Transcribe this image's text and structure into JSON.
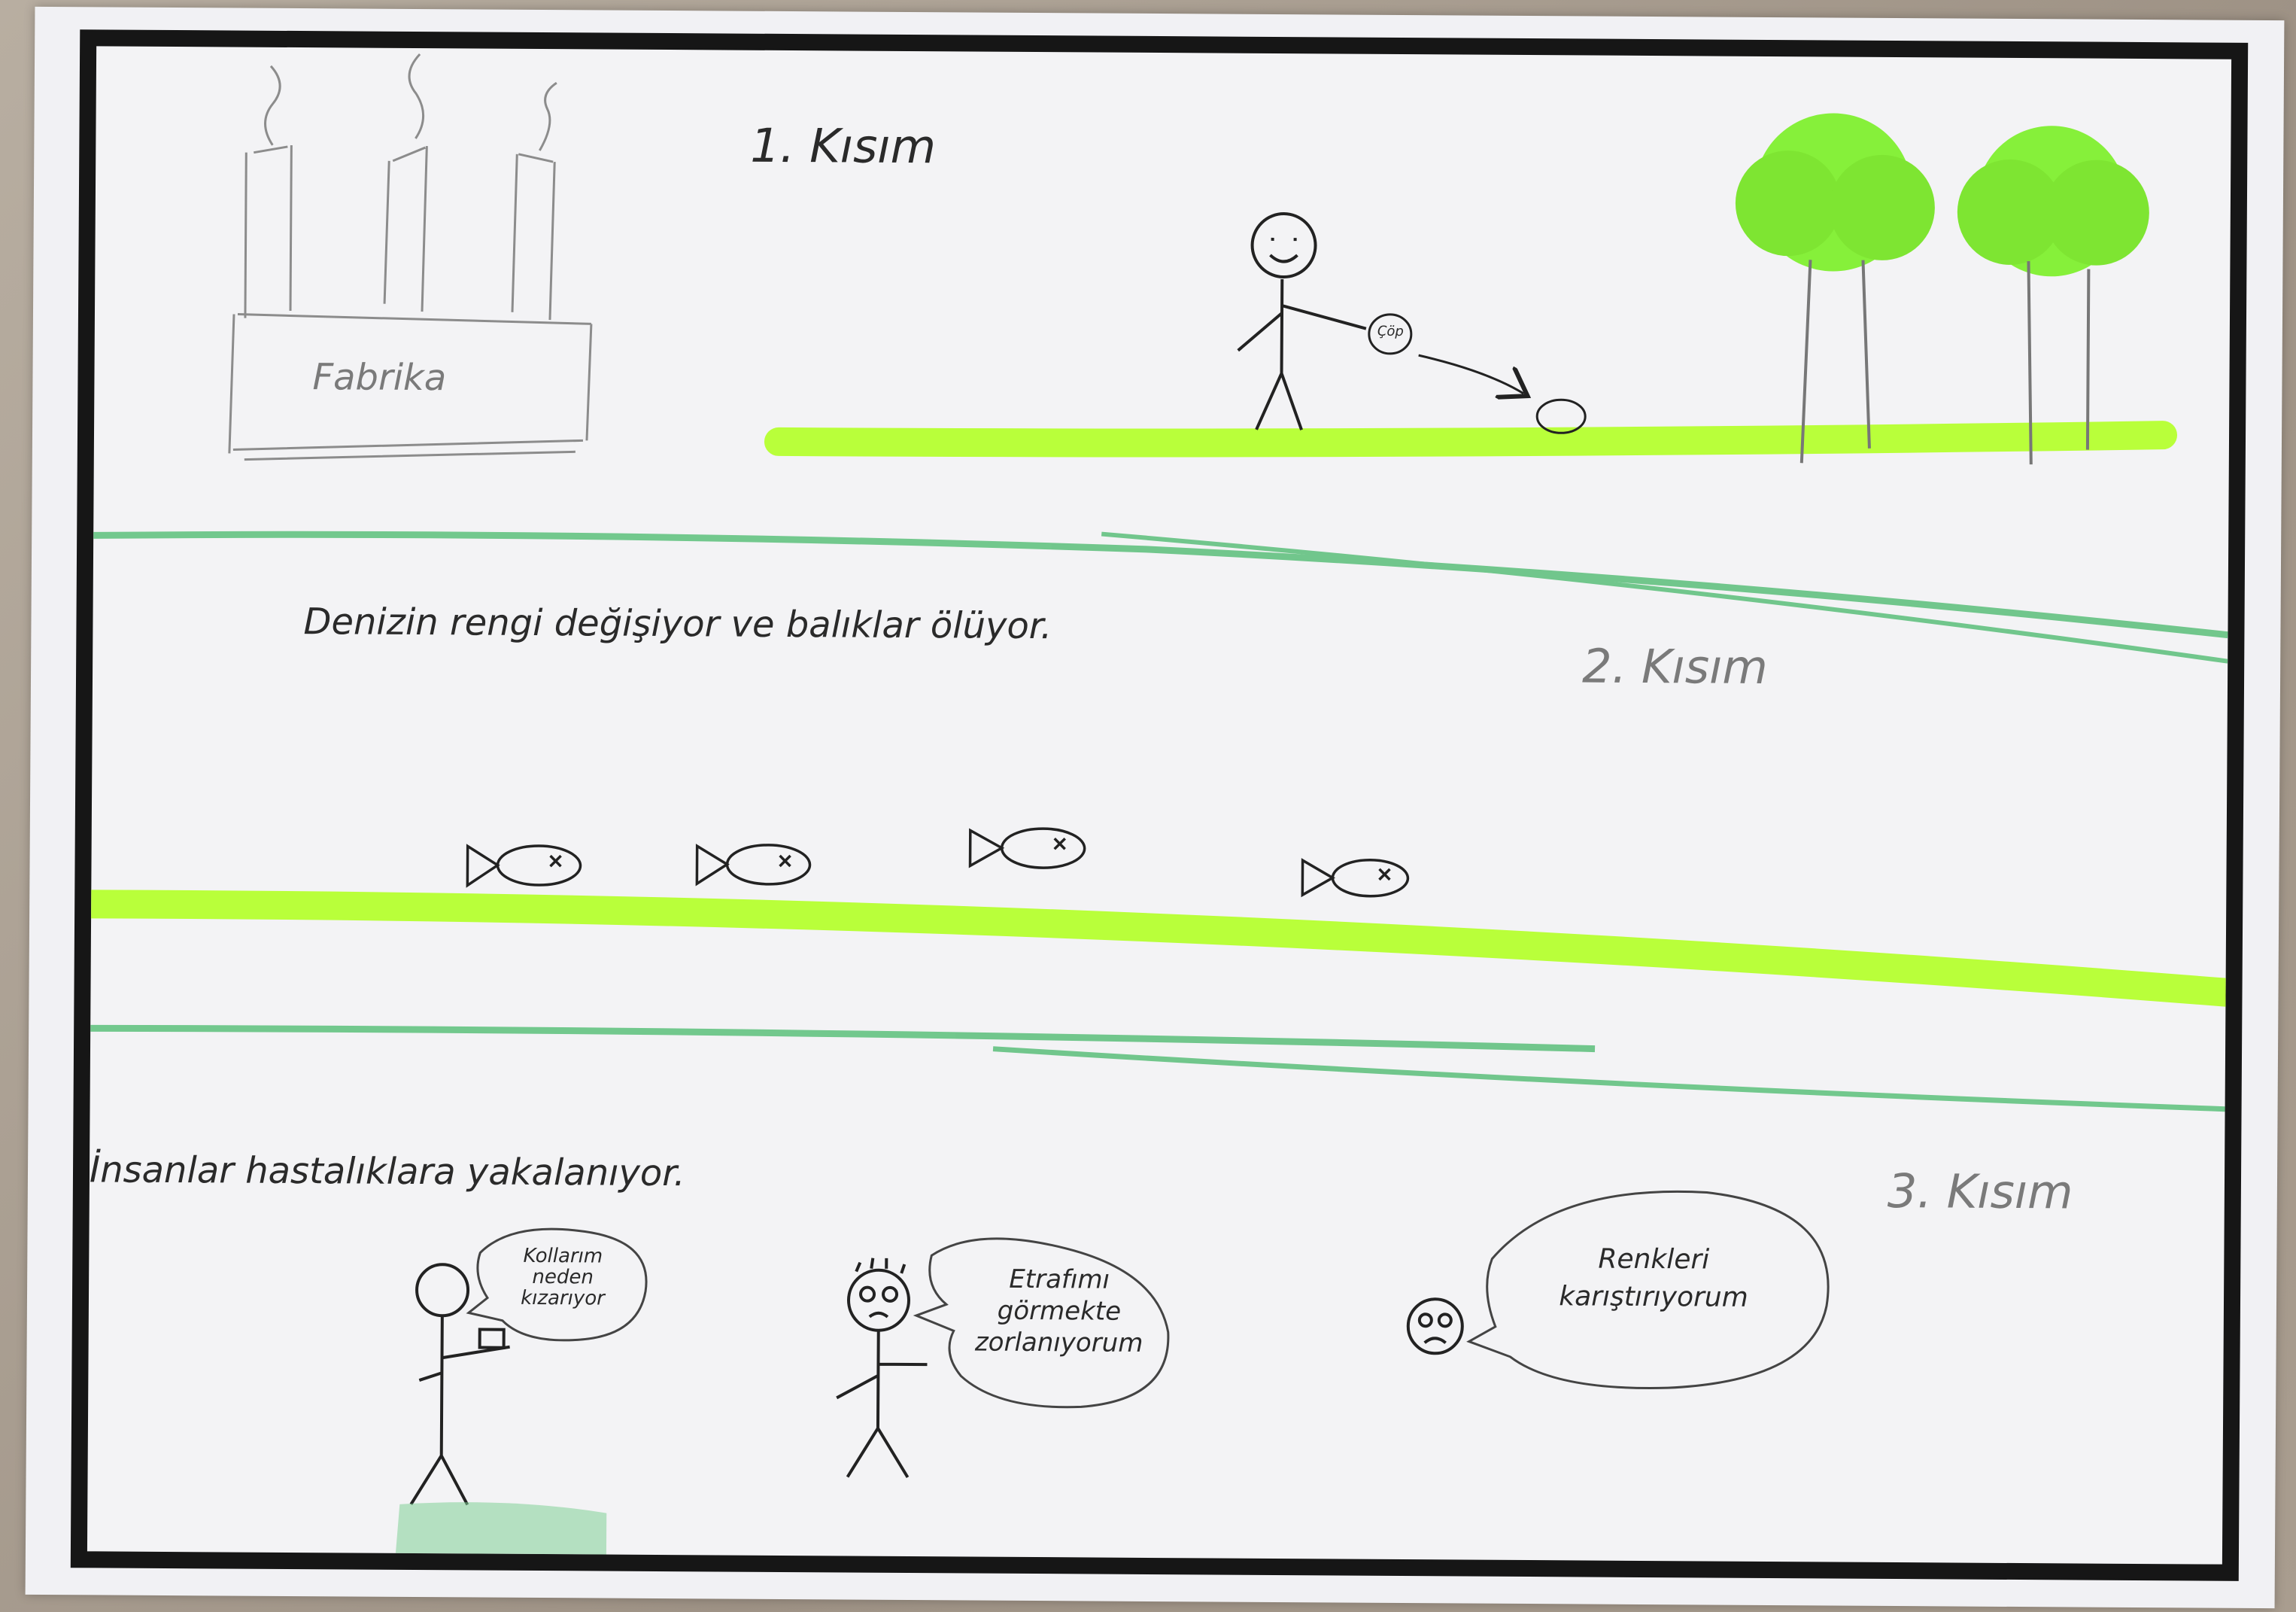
{
  "drawing": {
    "section1": {
      "title": "1. Kısım",
      "factory_label": "Fabrika",
      "bag_label": "Çöp"
    },
    "section2": {
      "title": "2. Kısım",
      "caption": "Denizin rengi değişiyor ve balıklar ölüyor."
    },
    "section3": {
      "title": "3. Kısım",
      "caption": "İnsanlar hastalıklara yakalanıyor.",
      "bubble1": "Kollarım neden kızarıyor",
      "bubble2": "Etrafımı görmekte zorlanıyorum",
      "bubble3": "Renkleri karıştırıyorum"
    }
  },
  "colors": {
    "highlighter": "#b9ff3a",
    "tree": "#86f03a",
    "pencil_green": "#5bbf7a",
    "frame": "#161616"
  }
}
